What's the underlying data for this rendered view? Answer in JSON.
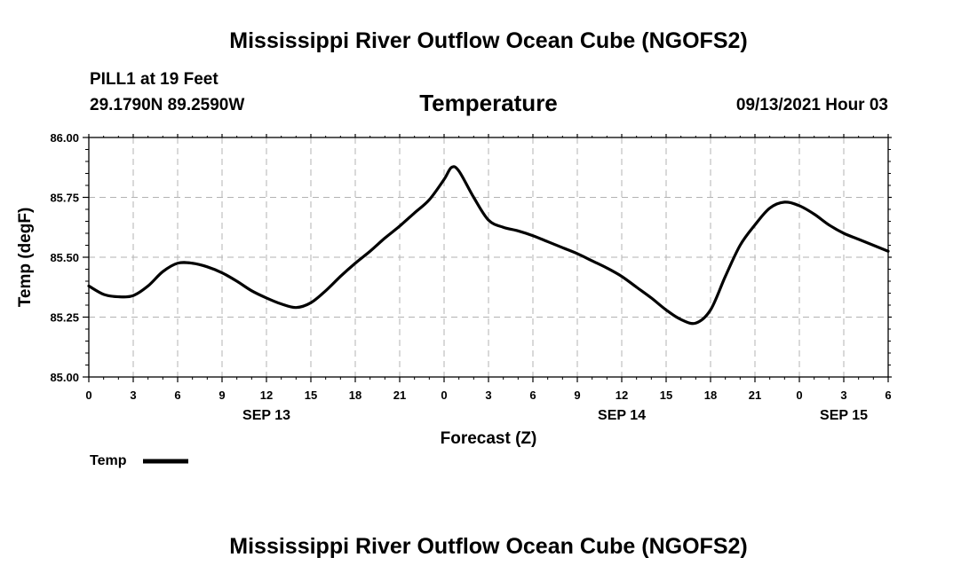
{
  "page": {
    "top_title": "Mississippi River Outflow Ocean Cube (NGOFS2)",
    "bottom_title": "Mississippi River Outflow Ocean Cube (NGOFS2)",
    "station": "PILL1 at 19 Feet",
    "coordinates": "29.1790N  89.2590W",
    "datetime": "09/13/2021 Hour 03"
  },
  "chart_data": {
    "type": "line",
    "title": "Temperature",
    "xlabel": "Forecast (Z)",
    "ylabel": "Temp (degF)",
    "xlim": [
      0,
      54
    ],
    "ylim": [
      85.0,
      86.0
    ],
    "yticks": [
      "85.00",
      "85.25",
      "85.50",
      "85.75",
      "86.00"
    ],
    "ytick_values": [
      85.0,
      85.25,
      85.5,
      85.75,
      86.0
    ],
    "xtick_labels": [
      "0",
      "3",
      "6",
      "9",
      "12",
      "15",
      "18",
      "21",
      "0",
      "3",
      "6",
      "9",
      "12",
      "15",
      "18",
      "21",
      "0",
      "3",
      "6"
    ],
    "day_labels": [
      {
        "label": "SEP 13",
        "hour": 12
      },
      {
        "label": "SEP 14",
        "hour": 36
      },
      {
        "label": "SEP 15",
        "hour": 51
      }
    ],
    "grid": true,
    "legend": {
      "position": "bottom-left",
      "entries": [
        "Temp"
      ]
    },
    "series": [
      {
        "name": "Temp",
        "color": "#000000",
        "x": [
          0,
          1,
          2,
          3,
          4,
          5,
          6,
          7,
          8,
          9,
          10,
          11,
          12,
          13,
          14,
          15,
          16,
          17,
          18,
          19,
          20,
          21,
          22,
          23,
          24,
          24.5,
          25,
          26,
          27,
          28,
          29,
          30,
          31,
          32,
          33,
          34,
          35,
          36,
          37,
          38,
          39,
          40,
          41,
          42,
          43,
          44,
          45,
          46,
          47,
          48,
          49,
          50,
          51,
          52,
          53,
          54
        ],
        "y": [
          85.38,
          85.345,
          85.335,
          85.34,
          85.38,
          85.44,
          85.475,
          85.475,
          85.46,
          85.435,
          85.4,
          85.36,
          85.33,
          85.305,
          85.29,
          85.31,
          85.36,
          85.42,
          85.475,
          85.525,
          85.58,
          85.63,
          85.685,
          85.74,
          85.825,
          85.875,
          85.86,
          85.75,
          85.655,
          85.625,
          85.61,
          85.59,
          85.565,
          85.54,
          85.515,
          85.485,
          85.455,
          85.42,
          85.375,
          85.33,
          85.28,
          85.24,
          85.225,
          85.28,
          85.42,
          85.55,
          85.635,
          85.705,
          85.73,
          85.715,
          85.68,
          85.635,
          85.6,
          85.575,
          85.55,
          85.525
        ]
      }
    ]
  }
}
